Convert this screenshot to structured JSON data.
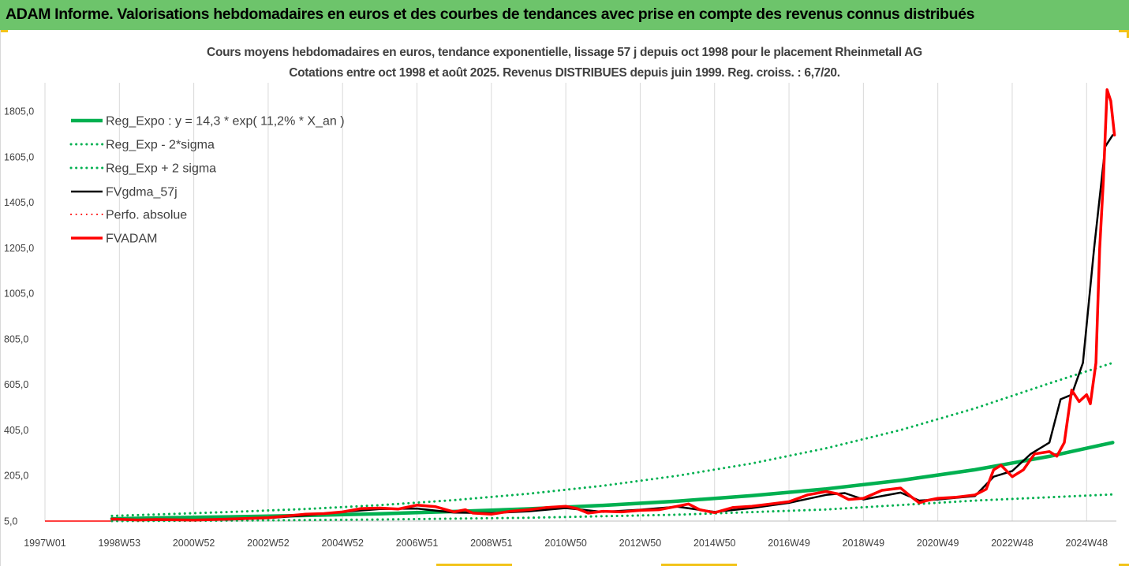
{
  "banner": {
    "title": "ADAM Informe. Valorisations hebdomadaires en euros et des courbes de tendances avec prise en compte des revenus connus distribués"
  },
  "colors": {
    "banner": "#6dc46b",
    "reg_expo": "#00b050",
    "fvgdma": "#000000",
    "fvadam": "#ff0000",
    "perfo": "#ff0000",
    "corner_accent": "#f2c318"
  },
  "chart_data": {
    "type": "line",
    "title": "Cours moyens hebdomadaires en euros, tendance exponentielle, lissage 57 j depuis oct 1998 pour le placement Rheinmetall AG",
    "subtitle": "Cotations entre oct 1998 et août 2025.  Revenus DISTRIBUES depuis juin 1999. Reg. croiss. : 6,7/20.",
    "xlabel": "",
    "ylabel": "",
    "ylim": [
      5,
      1930
    ],
    "xlim": [
      1997.0,
      2025.8
    ],
    "x_ticks": [
      {
        "label": "1997W01",
        "x": 1997.0
      },
      {
        "label": "1998W53",
        "x": 1999.0
      },
      {
        "label": "2000W52",
        "x": 2001.0
      },
      {
        "label": "2002W52",
        "x": 2003.0
      },
      {
        "label": "2004W52",
        "x": 2005.0
      },
      {
        "label": "2006W51",
        "x": 2007.0
      },
      {
        "label": "2008W51",
        "x": 2009.0
      },
      {
        "label": "2010W50",
        "x": 2011.0
      },
      {
        "label": "2012W50",
        "x": 2013.0
      },
      {
        "label": "2014W50",
        "x": 2015.0
      },
      {
        "label": "2016W49",
        "x": 2017.0
      },
      {
        "label": "2018W49",
        "x": 2019.0
      },
      {
        "label": "2020W49",
        "x": 2021.0
      },
      {
        "label": "2022W48",
        "x": 2023.0
      },
      {
        "label": "2024W48",
        "x": 2025.0
      }
    ],
    "y_ticks": [
      {
        "label": "5,0",
        "value": 5
      },
      {
        "label": "205,0",
        "value": 205
      },
      {
        "label": "405,0",
        "value": 405
      },
      {
        "label": "605,0",
        "value": 605
      },
      {
        "label": "805,0",
        "value": 805
      },
      {
        "label": "1005,0",
        "value": 1005
      },
      {
        "label": "1205,0",
        "value": 1205
      },
      {
        "label": "1405,0",
        "value": 1405
      },
      {
        "label": "1605,0",
        "value": 1605
      },
      {
        "label": "1805,0",
        "value": 1805
      }
    ],
    "grid": "vertical",
    "legend_position": "top-left",
    "series": [
      {
        "name": "Reg_Expo : y = 14,3 * exp( 11,2% *  X_an )",
        "key": "reg_expo",
        "style": "solid",
        "width": 4.5,
        "x": [
          1998.8,
          2000,
          2002,
          2004,
          2006,
          2008,
          2010,
          2012,
          2014,
          2016,
          2018,
          2020,
          2022,
          2024,
          2025.7
        ],
        "y": [
          15,
          18.8,
          23.6,
          29.6,
          37.3,
          46.8,
          58.8,
          73.8,
          92.7,
          116.4,
          146.2,
          183.5,
          230.5,
          289.4,
          350
        ]
      },
      {
        "name": "Reg_Exp - 2*sigma",
        "key": "reg_minus",
        "style": "dotted",
        "width": 3,
        "x": [
          1998.8,
          2002,
          2006,
          2010,
          2014,
          2018,
          2022,
          2025.7
        ],
        "y": [
          5,
          7,
          12,
          19.5,
          33,
          56,
          95,
          122
        ]
      },
      {
        "name": "Reg_Exp + 2 sigma",
        "key": "reg_plus",
        "style": "dotted",
        "width": 3,
        "x": [
          1998.8,
          2000,
          2002,
          2004,
          2006,
          2008,
          2010,
          2012,
          2014,
          2016,
          2018,
          2020,
          2022,
          2024,
          2025.7
        ],
        "y": [
          28,
          34,
          45,
          58,
          75,
          97,
          125,
          160,
          204,
          258,
          325,
          405,
          500,
          610,
          700
        ]
      },
      {
        "name": "FVgdma_57j",
        "key": "fvgdma",
        "style": "solid",
        "width": 2.5,
        "x": [
          1998.8,
          2000,
          2002,
          2003,
          2004,
          2005,
          2006,
          2007,
          2008,
          2009,
          2010,
          2011,
          2012,
          2013,
          2014,
          2015,
          2016,
          2017,
          2018,
          2018.5,
          2019,
          2020,
          2020.5,
          2021,
          2022,
          2022.5,
          2023,
          2023.5,
          2024,
          2024.3,
          2024.6,
          2024.9,
          2025.2,
          2025.5,
          2025.7
        ],
        "y": [
          12,
          10,
          12,
          18,
          30,
          45,
          58,
          60,
          42,
          40,
          48,
          62,
          45,
          55,
          68,
          45,
          62,
          85,
          120,
          128,
          100,
          130,
          95,
          100,
          115,
          200,
          225,
          300,
          350,
          540,
          560,
          700,
          1200,
          1650,
          1700
        ]
      },
      {
        "name": "Perfo. absolue",
        "key": "perfo",
        "style": "dotted",
        "width": 2,
        "x": [],
        "y": []
      },
      {
        "name": "FVADAM",
        "key": "fvadam",
        "style": "solid",
        "width": 3.5,
        "x": [
          1998.8,
          1999.5,
          2000,
          2001,
          2002,
          2003,
          2004,
          2004.5,
          2005,
          2005.5,
          2006,
          2006.5,
          2007,
          2007.5,
          2008,
          2008.3,
          2008.5,
          2009,
          2009.5,
          2010,
          2010.5,
          2011,
          2011.3,
          2011.6,
          2012,
          2012.5,
          2013,
          2013.5,
          2014,
          2014.3,
          2014.6,
          2015,
          2015.5,
          2016,
          2016.5,
          2017,
          2017.5,
          2018,
          2018.3,
          2018.6,
          2019,
          2019.5,
          2020,
          2020.3,
          2020.5,
          2020.7,
          2021,
          2021.5,
          2022,
          2022.3,
          2022.5,
          2022.7,
          2023,
          2023.3,
          2023.6,
          2024,
          2024.2,
          2024.4,
          2024.6,
          2024.8,
          2025,
          2025.1,
          2025.25,
          2025.35,
          2025.45,
          2025.55,
          2025.65,
          2025.75
        ],
        "y": [
          14,
          10,
          12,
          9,
          14,
          20,
          35,
          38,
          45,
          60,
          62,
          58,
          75,
          68,
          45,
          55,
          40,
          35,
          48,
          55,
          65,
          70,
          60,
          40,
          48,
          45,
          52,
          55,
          70,
          80,
          55,
          42,
          65,
          70,
          80,
          90,
          120,
          135,
          125,
          100,
          105,
          140,
          150,
          110,
          85,
          95,
          105,
          110,
          120,
          145,
          230,
          250,
          200,
          230,
          300,
          310,
          290,
          350,
          580,
          530,
          560,
          520,
          700,
          1200,
          1500,
          1900,
          1850,
          1700
        ]
      }
    ]
  }
}
